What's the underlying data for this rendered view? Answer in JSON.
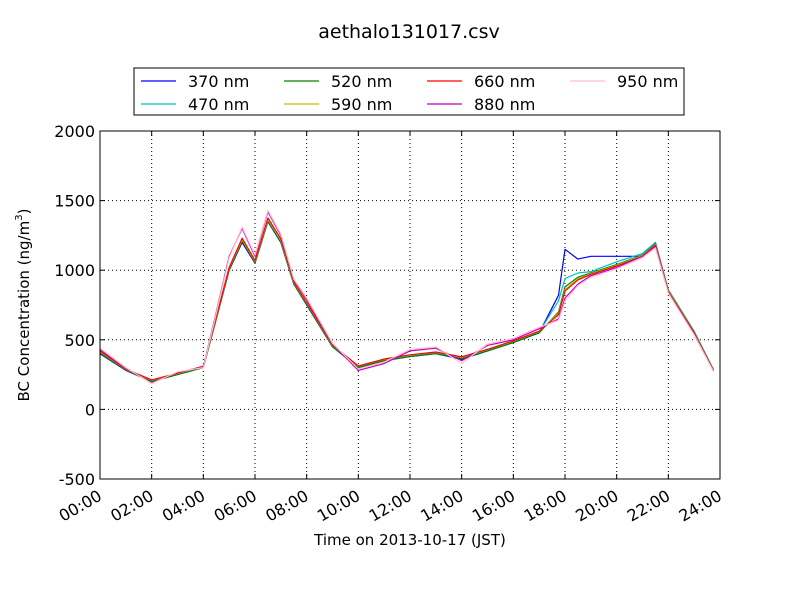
{
  "chart_data": {
    "type": "line",
    "title": "aethalo131017.csv",
    "xlabel": "Time on 2013-10-17 (JST)",
    "ylabel": "BC Concentration (ng/m",
    "ylabel_sup": "3",
    "ylabel_end": ")",
    "xlim": [
      "00:00",
      "24:00"
    ],
    "ylim": [
      -500,
      2000
    ],
    "x_ticks": [
      "00:00",
      "02:00",
      "04:00",
      "06:00",
      "08:00",
      "10:00",
      "12:00",
      "14:00",
      "16:00",
      "18:00",
      "20:00",
      "22:00",
      "24:00"
    ],
    "y_ticks": [
      "-500",
      "0",
      "500",
      "1000",
      "1500",
      "2000"
    ],
    "grid": true,
    "legend_position": "top",
    "x": [
      "00:00",
      "01:00",
      "02:00",
      "03:00",
      "04:00",
      "04:30",
      "05:00",
      "05:30",
      "06:00",
      "06:30",
      "07:00",
      "07:30",
      "08:00",
      "09:00",
      "10:00",
      "11:00",
      "12:00",
      "13:00",
      "14:00",
      "15:00",
      "16:00",
      "17:00",
      "17:45",
      "18:00",
      "18:30",
      "19:00",
      "20:00",
      "21:00",
      "21:30",
      "22:00",
      "23:00",
      "23:45"
    ],
    "series": [
      {
        "name": "370 nm",
        "color": "#0000ff",
        "values": [
          400,
          280,
          200,
          250,
          300,
          650,
          1000,
          1200,
          1050,
          1350,
          1200,
          900,
          750,
          450,
          300,
          350,
          380,
          400,
          360,
          420,
          480,
          550,
          820,
          1150,
          1080,
          1100,
          1100,
          1100,
          1200,
          850,
          550,
          280
        ]
      },
      {
        "name": "470 nm",
        "color": "#00bfbf",
        "values": [
          410,
          285,
          205,
          255,
          305,
          655,
          1010,
          1215,
          1060,
          1360,
          1210,
          905,
          760,
          455,
          305,
          355,
          385,
          405,
          370,
          425,
          485,
          555,
          780,
          940,
          980,
          990,
          1060,
          1120,
          1200,
          860,
          560,
          285
        ]
      },
      {
        "name": "520 nm",
        "color": "#008000",
        "values": [
          405,
          282,
          200,
          250,
          300,
          650,
          1005,
          1210,
          1055,
          1355,
          1205,
          900,
          755,
          450,
          300,
          350,
          380,
          400,
          365,
          420,
          480,
          550,
          700,
          880,
          950,
          980,
          1040,
          1110,
          1190,
          855,
          555,
          283
        ]
      },
      {
        "name": "590 nm",
        "color": "#bfbf00",
        "values": [
          415,
          288,
          210,
          258,
          308,
          660,
          1015,
          1220,
          1065,
          1365,
          1215,
          910,
          765,
          460,
          310,
          360,
          390,
          410,
          375,
          430,
          490,
          560,
          690,
          860,
          940,
          975,
          1035,
          1105,
          1185,
          850,
          550,
          280
        ]
      },
      {
        "name": "660 nm",
        "color": "#ff0000",
        "values": [
          420,
          290,
          212,
          260,
          310,
          665,
          1020,
          1230,
          1070,
          1375,
          1225,
          915,
          770,
          462,
          312,
          362,
          392,
          412,
          378,
          432,
          492,
          562,
          680,
          850,
          930,
          970,
          1030,
          1100,
          1180,
          845,
          548,
          278
        ]
      },
      {
        "name": "880 nm",
        "color": "#bf00bf",
        "values": [
          430,
          295,
          190,
          265,
          305,
          700,
          1100,
          1300,
          1100,
          1420,
          1250,
          930,
          790,
          470,
          280,
          330,
          420,
          440,
          350,
          460,
          500,
          580,
          650,
          800,
          900,
          960,
          1020,
          1100,
          1170,
          840,
          540,
          275
        ]
      },
      {
        "name": "950 nm",
        "color": "#ffc0cb",
        "values": [
          440,
          300,
          185,
          270,
          300,
          690,
          1090,
          1310,
          1110,
          1430,
          1260,
          935,
          800,
          475,
          290,
          340,
          430,
          450,
          330,
          470,
          510,
          590,
          640,
          780,
          890,
          950,
          1010,
          1090,
          1160,
          835,
          535,
          272
        ]
      }
    ]
  }
}
